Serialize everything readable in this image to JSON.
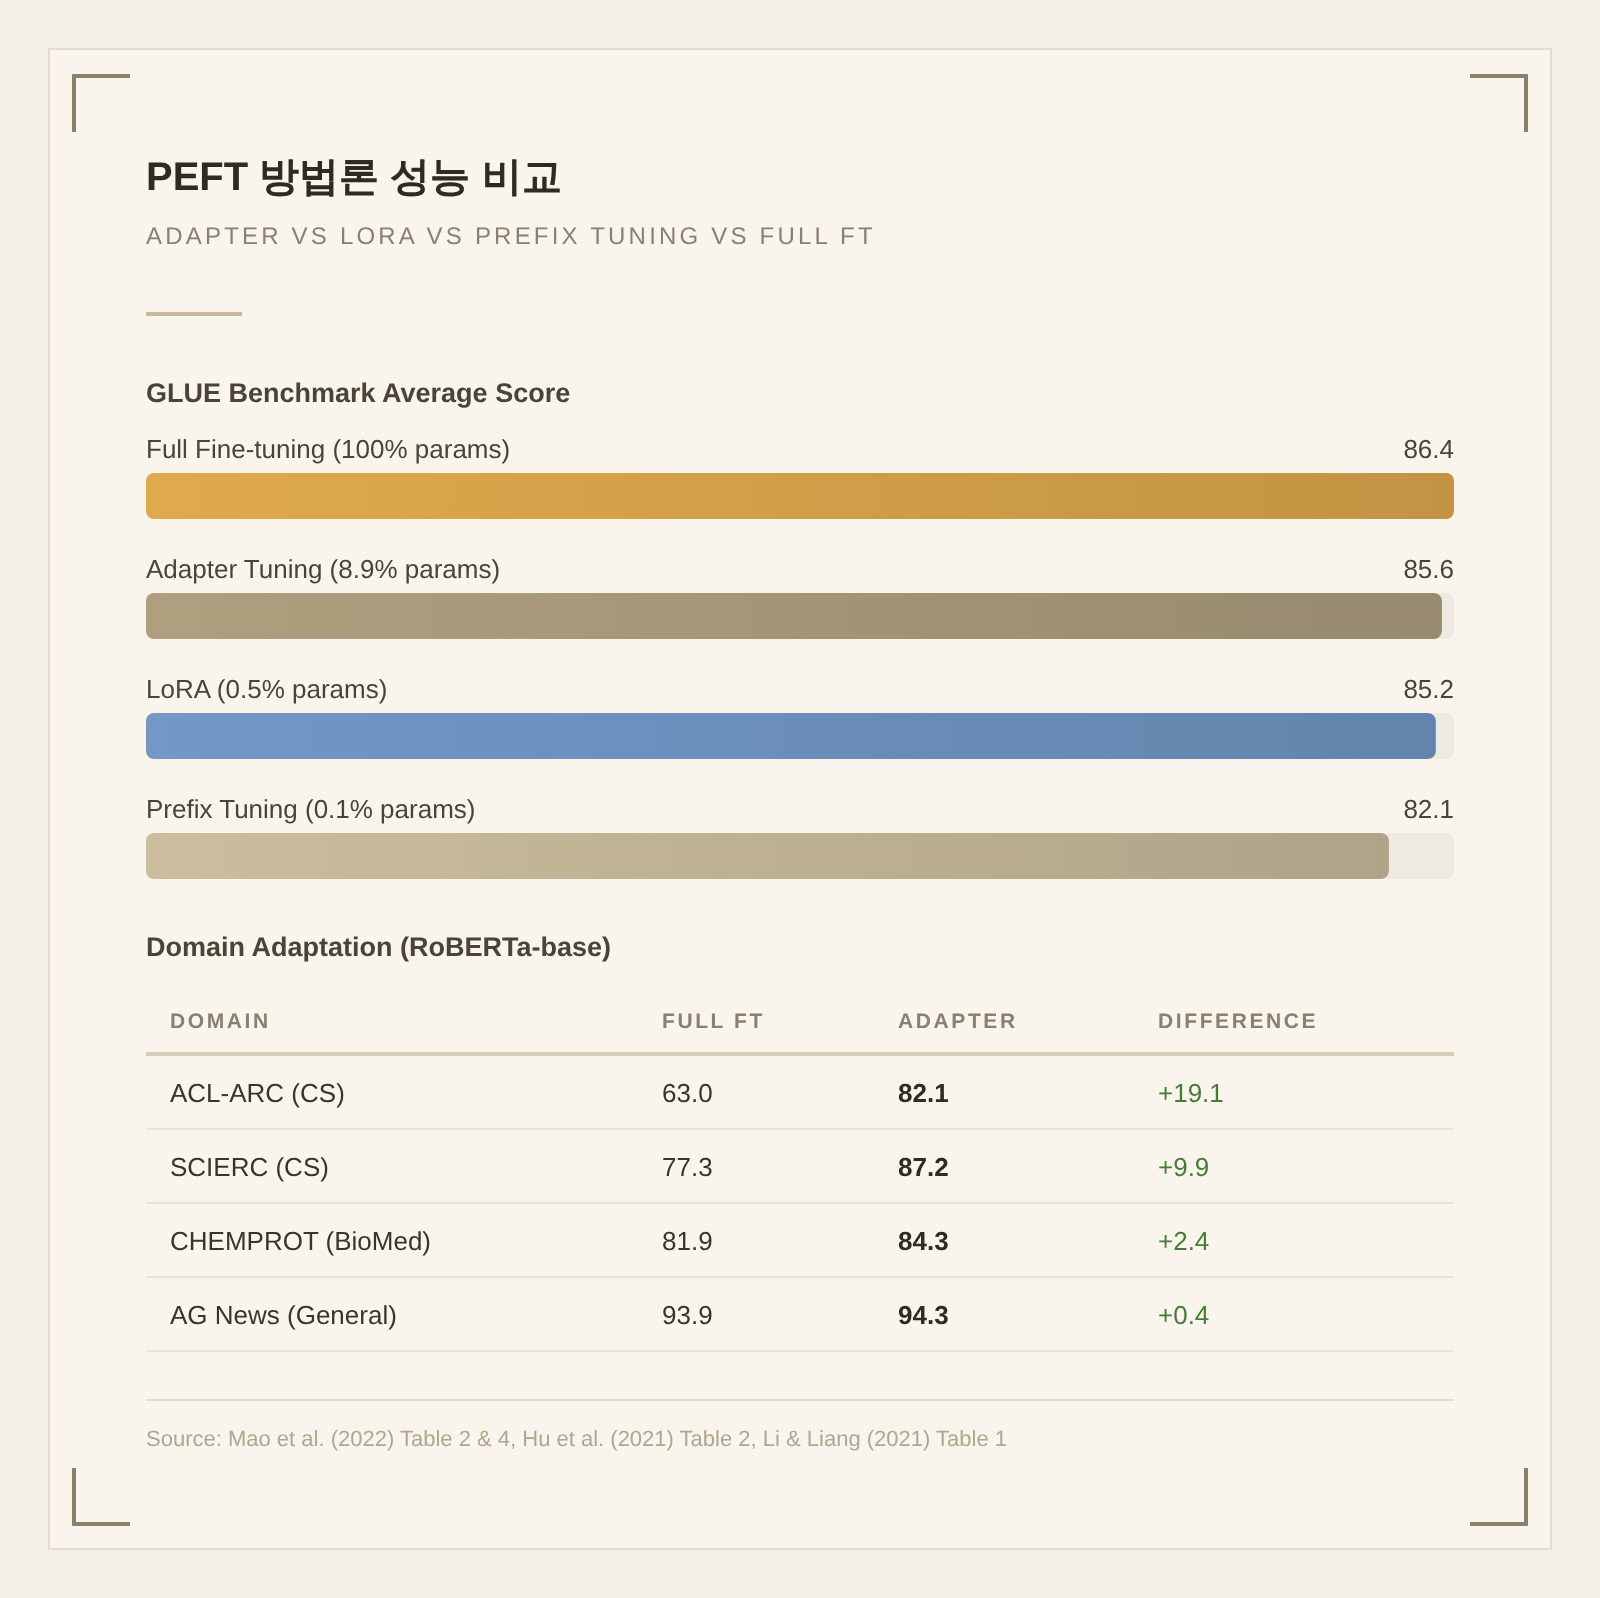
{
  "chart_data": [
    {
      "type": "other",
      "title": "PEFT 방법론 성능 비교",
      "subtitle": "ADAPTER VS LORA VS PREFIX TUNING VS FULL FT"
    },
    {
      "type": "bar",
      "orientation": "horizontal",
      "title": "GLUE Benchmark Average Score",
      "categories": [
        "Full Fine-tuning (100% params)",
        "Adapter Tuning (8.9% params)",
        "LoRA (0.5% params)",
        "Prefix Tuning (0.1% params)"
      ],
      "values": [
        86.4,
        85.6,
        85.2,
        82.1
      ],
      "colors": [
        "#d09e48",
        "#a39476",
        "#6a8eb9",
        "#bdb092"
      ],
      "data_labels": true,
      "tick_labels": "y"
    },
    {
      "type": "other",
      "title": "Domain Adaptation (RoBERTa-base)",
      "ylabel": "DOMAIN",
      "categories": [
        "ACL-ARC (CS)",
        "SCIERC (CS)",
        "CHEMPROT (BioMed)",
        "AG News (General)"
      ],
      "series": [
        {
          "name": "FULL FT",
          "values": [
            63.0,
            77.3,
            81.9,
            93.9
          ],
          "value_labels": [
            "63.0",
            "77.3",
            "81.9",
            "93.9"
          ]
        },
        {
          "name": "ADAPTER",
          "values": [
            82.1,
            87.2,
            84.3,
            94.3
          ],
          "value_labels": [
            "82.1",
            "87.2",
            "84.3",
            "94.3"
          ]
        },
        {
          "name": "DIFFERENCE",
          "values": [
            19.1,
            9.9,
            2.4,
            0.4
          ],
          "value_labels": [
            "+19.1",
            "+9.9",
            "+2.4",
            "+0.4"
          ]
        }
      ],
      "annotations": [
        "Source: Mao et al. (2022) Table 2 & 4, Hu et al. (2021) Table 2, Li & Liang (2021) Table 1"
      ]
    }
  ]
}
